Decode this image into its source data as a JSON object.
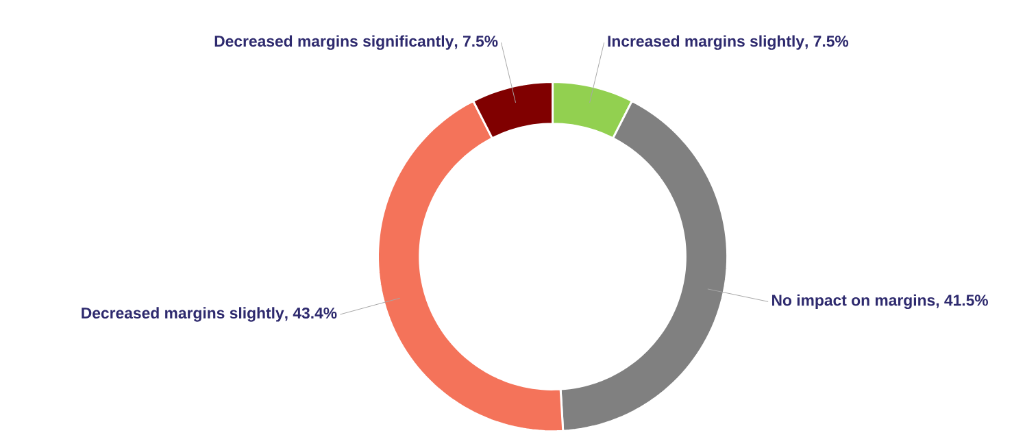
{
  "chart_data": {
    "type": "donut",
    "categories": [
      "Increased margins slightly",
      "No impact on margins",
      "Decreased margins slightly",
      "Decreased margins significantly"
    ],
    "values": [
      7.5,
      41.5,
      43.4,
      7.5
    ],
    "colors": [
      "#92d050",
      "#808080",
      "#f4735a",
      "#800000"
    ],
    "value_labels": [
      ", 7.5%",
      ", 41.5%",
      ", 43.4%",
      ", 7.5%"
    ]
  }
}
